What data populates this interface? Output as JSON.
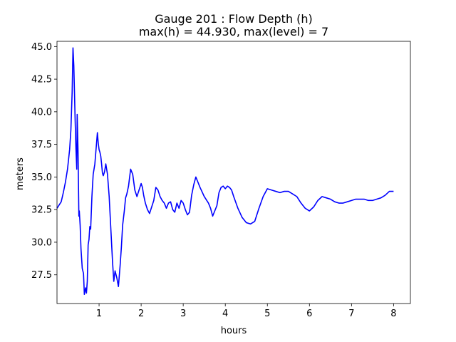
{
  "chart_data": {
    "type": "line",
    "title_line1": "Gauge 201 : Flow Depth (h)",
    "title_line2": "max(h) =  44.930,    max(level) = 7",
    "xlabel": "hours",
    "ylabel": "meters",
    "xlim": [
      0,
      8.4
    ],
    "ylim": [
      25.3,
      45.4
    ],
    "x_ticks": [
      1,
      2,
      3,
      4,
      5,
      6,
      7,
      8
    ],
    "x_tick_labels": [
      "1",
      "2",
      "3",
      "4",
      "5",
      "6",
      "7",
      "8"
    ],
    "y_ticks": [
      27.5,
      30.0,
      32.5,
      35.0,
      37.5,
      40.0,
      42.5,
      45.0
    ],
    "y_tick_labels": [
      "27.5",
      "30.0",
      "32.5",
      "35.0",
      "37.5",
      "40.0",
      "42.5",
      "45.0"
    ],
    "grid": false,
    "series": [
      {
        "color": "#0000ff",
        "x": [
          0.0,
          0.1,
          0.15,
          0.2,
          0.25,
          0.3,
          0.33,
          0.36,
          0.38,
          0.4,
          0.41,
          0.43,
          0.45,
          0.47,
          0.48,
          0.5,
          0.51,
          0.52,
          0.53,
          0.55,
          0.57,
          0.6,
          0.63,
          0.65,
          0.68,
          0.7,
          0.72,
          0.74,
          0.76,
          0.78,
          0.8,
          0.83,
          0.86,
          0.9,
          0.93,
          0.96,
          0.98,
          1.0,
          1.02,
          1.04,
          1.06,
          1.08,
          1.1,
          1.13,
          1.16,
          1.2,
          1.24,
          1.28,
          1.32,
          1.35,
          1.38,
          1.42,
          1.46,
          1.5,
          1.53,
          1.56,
          1.6,
          1.63,
          1.66,
          1.7,
          1.75,
          1.8,
          1.85,
          1.9,
          1.95,
          2.0,
          2.03,
          2.06,
          2.1,
          2.15,
          2.2,
          2.25,
          2.3,
          2.35,
          2.4,
          2.45,
          2.5,
          2.55,
          2.6,
          2.65,
          2.7,
          2.75,
          2.8,
          2.85,
          2.9,
          2.95,
          3.0,
          3.05,
          3.1,
          3.15,
          3.2,
          3.25,
          3.3,
          3.35,
          3.4,
          3.5,
          3.6,
          3.65,
          3.7,
          3.75,
          3.8,
          3.85,
          3.9,
          3.95,
          4.0,
          4.05,
          4.1,
          4.15,
          4.2,
          4.3,
          4.4,
          4.5,
          4.6,
          4.7,
          4.8,
          4.9,
          5.0,
          5.1,
          5.2,
          5.3,
          5.4,
          5.5,
          5.6,
          5.7,
          5.8,
          5.9,
          6.0,
          6.1,
          6.2,
          6.3,
          6.4,
          6.5,
          6.6,
          6.7,
          6.8,
          6.9,
          7.0,
          7.1,
          7.2,
          7.3,
          7.4,
          7.5,
          7.6,
          7.7,
          7.8,
          7.9,
          8.0
        ],
        "y": [
          32.6,
          33.1,
          33.8,
          34.6,
          35.6,
          37.1,
          38.6,
          41.5,
          44.9,
          43.5,
          42.2,
          39.5,
          37.2,
          35.6,
          39.8,
          37.0,
          34.5,
          32.0,
          32.4,
          31.3,
          29.5,
          28.0,
          27.6,
          26.0,
          26.5,
          26.1,
          27.0,
          29.8,
          30.2,
          31.2,
          31.0,
          33.5,
          35.2,
          36.0,
          37.2,
          38.4,
          37.6,
          37.1,
          36.9,
          36.6,
          36.0,
          35.3,
          35.1,
          35.4,
          36.0,
          35.2,
          33.5,
          31.0,
          28.5,
          27.0,
          27.8,
          27.3,
          26.6,
          28.2,
          29.6,
          31.3,
          32.4,
          33.4,
          33.7,
          34.3,
          35.6,
          35.2,
          34.0,
          33.5,
          34.0,
          34.5,
          34.2,
          33.6,
          33.0,
          32.5,
          32.2,
          32.7,
          33.2,
          34.2,
          34.0,
          33.5,
          33.2,
          33.0,
          32.6,
          33.0,
          33.1,
          32.5,
          32.3,
          33.0,
          32.6,
          33.2,
          33.0,
          32.5,
          32.1,
          32.3,
          33.6,
          34.4,
          35.0,
          34.6,
          34.2,
          33.5,
          33.0,
          32.6,
          32.0,
          32.4,
          32.8,
          33.8,
          34.2,
          34.3,
          34.1,
          34.3,
          34.2,
          34.0,
          33.5,
          32.6,
          31.9,
          31.5,
          31.4,
          31.6,
          32.6,
          33.5,
          34.1,
          34.0,
          33.9,
          33.8,
          33.9,
          33.9,
          33.7,
          33.5,
          33.0,
          32.6,
          32.4,
          32.7,
          33.2,
          33.5,
          33.4,
          33.3,
          33.1,
          33.0,
          33.0,
          33.1,
          33.2,
          33.3,
          33.3,
          33.3,
          33.2,
          33.2,
          33.3,
          33.4,
          33.6,
          33.9,
          33.9
        ]
      }
    ]
  }
}
